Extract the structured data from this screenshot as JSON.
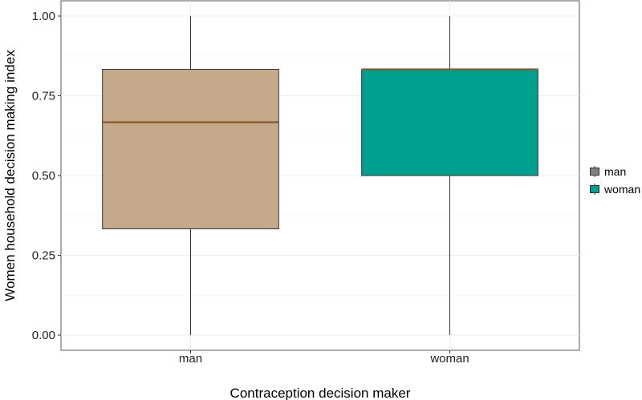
{
  "chart_data": {
    "type": "boxplot",
    "title": "",
    "xlabel": "Contraception decision maker",
    "ylabel": "Women household decision making index",
    "ylim": [
      -0.05,
      1.05
    ],
    "y_ticks": [
      "0.00",
      "0.25",
      "0.50",
      "0.75",
      "1.00"
    ],
    "y_tick_values": [
      0,
      0.25,
      0.5,
      0.75,
      1.0
    ],
    "grid": true,
    "legend": {
      "placement": "right",
      "entries": [
        "man",
        "woman"
      ]
    },
    "categories": [
      "man",
      "woman"
    ],
    "series": [
      {
        "name": "man",
        "min": 0,
        "q1": 0.333,
        "median": 0.667,
        "q3": 0.833,
        "max": 1.0,
        "fill": "#C4A98A",
        "median_color": "#8B5A2B"
      },
      {
        "name": "woman",
        "min": 0,
        "q1": 0.5,
        "median": 0.833,
        "q3": 0.833,
        "max": 1.0,
        "fill": "#00A091",
        "median_color": "#8B5A2B"
      }
    ]
  }
}
